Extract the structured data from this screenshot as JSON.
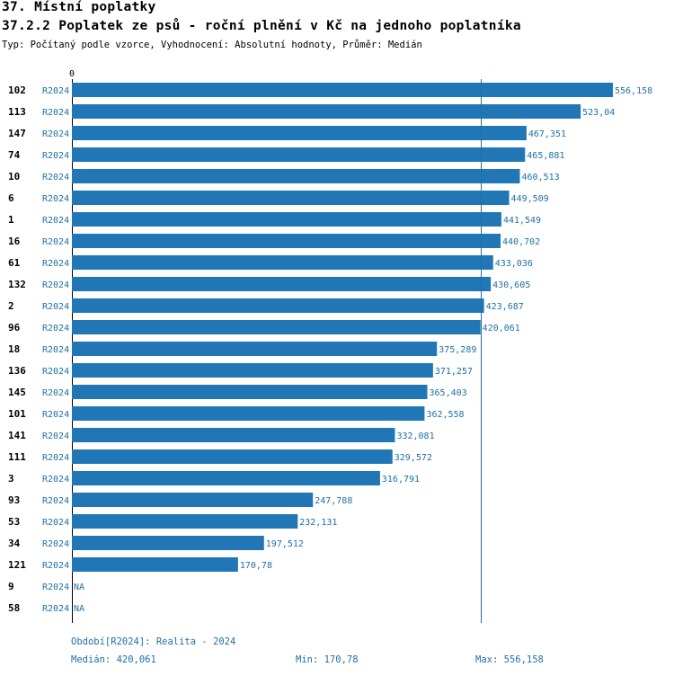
{
  "header": {
    "section": "37. Místní poplatky",
    "title": "37.2.2 Poplatek ze psů - roční plnění v Kč na jednoho poplatníka",
    "subtitle": "Typ: Počítaný podle vzorce, Vyhodnocení: Absolutní hodnoty, Průměr: Medián"
  },
  "chart_data": {
    "type": "bar",
    "orientation": "horizontal",
    "title": "37.2.2 Poplatek ze psů - roční plnění v Kč na jednoho poplatníka",
    "axis_zero_label": "0",
    "xlim": [
      0,
      556.158
    ],
    "median_line": 420.061,
    "series_label": "R2024",
    "colors": {
      "bar": "#2176b5",
      "label": "#1f6fa8",
      "median_line": "#1f6fa8"
    },
    "rows": [
      {
        "id": "102",
        "series": "R2024",
        "value": 556.158,
        "label": "556,158"
      },
      {
        "id": "113",
        "series": "R2024",
        "value": 523.04,
        "label": "523,04"
      },
      {
        "id": "147",
        "series": "R2024",
        "value": 467.351,
        "label": "467,351"
      },
      {
        "id": "74",
        "series": "R2024",
        "value": 465.881,
        "label": "465,881"
      },
      {
        "id": "10",
        "series": "R2024",
        "value": 460.513,
        "label": "460,513"
      },
      {
        "id": "6",
        "series": "R2024",
        "value": 449.509,
        "label": "449,509"
      },
      {
        "id": "1",
        "series": "R2024",
        "value": 441.549,
        "label": "441,549"
      },
      {
        "id": "16",
        "series": "R2024",
        "value": 440.702,
        "label": "440,702"
      },
      {
        "id": "61",
        "series": "R2024",
        "value": 433.036,
        "label": "433,036"
      },
      {
        "id": "132",
        "series": "R2024",
        "value": 430.605,
        "label": "430,605"
      },
      {
        "id": "2",
        "series": "R2024",
        "value": 423.687,
        "label": "423,687"
      },
      {
        "id": "96",
        "series": "R2024",
        "value": 420.061,
        "label": "420,061"
      },
      {
        "id": "18",
        "series": "R2024",
        "value": 375.289,
        "label": "375,289"
      },
      {
        "id": "136",
        "series": "R2024",
        "value": 371.257,
        "label": "371,257"
      },
      {
        "id": "145",
        "series": "R2024",
        "value": 365.403,
        "label": "365,403"
      },
      {
        "id": "101",
        "series": "R2024",
        "value": 362.558,
        "label": "362,558"
      },
      {
        "id": "141",
        "series": "R2024",
        "value": 332.081,
        "label": "332,081"
      },
      {
        "id": "111",
        "series": "R2024",
        "value": 329.572,
        "label": "329,572"
      },
      {
        "id": "3",
        "series": "R2024",
        "value": 316.791,
        "label": "316,791"
      },
      {
        "id": "93",
        "series": "R2024",
        "value": 247.788,
        "label": "247,788"
      },
      {
        "id": "53",
        "series": "R2024",
        "value": 232.131,
        "label": "232,131"
      },
      {
        "id": "34",
        "series": "R2024",
        "value": 197.512,
        "label": "197,512"
      },
      {
        "id": "121",
        "series": "R2024",
        "value": 170.78,
        "label": "170,78"
      },
      {
        "id": "9",
        "series": "R2024",
        "value": null,
        "label": "NA"
      },
      {
        "id": "58",
        "series": "R2024",
        "value": null,
        "label": "NA"
      }
    ]
  },
  "footer": {
    "period": "Období[R2024]: Realita - 2024",
    "median": "Medián: 420,061",
    "min": "Min: 170,78",
    "max": "Max: 556,158"
  }
}
